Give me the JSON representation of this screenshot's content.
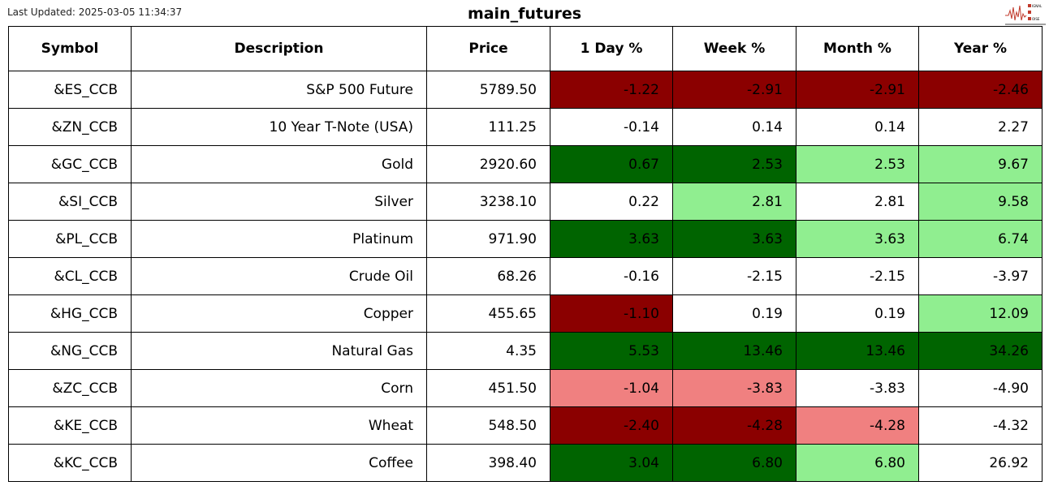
{
  "last_updated": "Last Updated: 2025-03-05 11:34:37",
  "title": "main_futures",
  "logo": {
    "text": "SIGNAL 2 NOISE"
  },
  "colors": {
    "DR": "#8b0000",
    "DG": "#006400",
    "LG": "#90ee90",
    "LC": "#f08080",
    "W": "#ffffff"
  },
  "chart_data": {
    "type": "table",
    "columns": [
      "Symbol",
      "Description",
      "Price",
      "1 Day %",
      "Week %",
      "Month %",
      "Year %"
    ],
    "rows": [
      {
        "cells": [
          "&ES_CCB",
          "S&P 500 Future",
          "5789.50",
          "-1.22",
          "-2.91",
          "-2.91",
          "-2.46"
        ],
        "colors": [
          "DR",
          "DR",
          "DR",
          "DR"
        ]
      },
      {
        "cells": [
          "&ZN_CCB",
          "10 Year T-Note (USA)",
          "111.25",
          "-0.14",
          "0.14",
          "0.14",
          "2.27"
        ],
        "colors": [
          "W",
          "W",
          "W",
          "W"
        ]
      },
      {
        "cells": [
          "&GC_CCB",
          "Gold",
          "2920.60",
          "0.67",
          "2.53",
          "2.53",
          "9.67"
        ],
        "colors": [
          "DG",
          "DG",
          "LG",
          "LG"
        ]
      },
      {
        "cells": [
          "&SI_CCB",
          "Silver",
          "3238.10",
          "0.22",
          "2.81",
          "2.81",
          "9.58"
        ],
        "colors": [
          "W",
          "LG",
          "W",
          "LG"
        ]
      },
      {
        "cells": [
          "&PL_CCB",
          "Platinum",
          "971.90",
          "3.63",
          "3.63",
          "3.63",
          "6.74"
        ],
        "colors": [
          "DG",
          "DG",
          "LG",
          "LG"
        ]
      },
      {
        "cells": [
          "&CL_CCB",
          "Crude Oil",
          "68.26",
          "-0.16",
          "-2.15",
          "-2.15",
          "-3.97"
        ],
        "colors": [
          "W",
          "W",
          "W",
          "W"
        ]
      },
      {
        "cells": [
          "&HG_CCB",
          "Copper",
          "455.65",
          "-1.10",
          "0.19",
          "0.19",
          "12.09"
        ],
        "colors": [
          "DR",
          "W",
          "W",
          "LG"
        ]
      },
      {
        "cells": [
          "&NG_CCB",
          "Natural Gas",
          "4.35",
          "5.53",
          "13.46",
          "13.46",
          "34.26"
        ],
        "colors": [
          "DG",
          "DG",
          "DG",
          "DG"
        ]
      },
      {
        "cells": [
          "&ZC_CCB",
          "Corn",
          "451.50",
          "-1.04",
          "-3.83",
          "-3.83",
          "-4.90"
        ],
        "colors": [
          "LC",
          "LC",
          "W",
          "W"
        ]
      },
      {
        "cells": [
          "&KE_CCB",
          "Wheat",
          "548.50",
          "-2.40",
          "-4.28",
          "-4.28",
          "-4.32"
        ],
        "colors": [
          "DR",
          "DR",
          "LC",
          "W"
        ]
      },
      {
        "cells": [
          "&KC_CCB",
          "Coffee",
          "398.40",
          "3.04",
          "6.80",
          "6.80",
          "26.92"
        ],
        "colors": [
          "DG",
          "DG",
          "LG",
          "W"
        ]
      }
    ]
  }
}
